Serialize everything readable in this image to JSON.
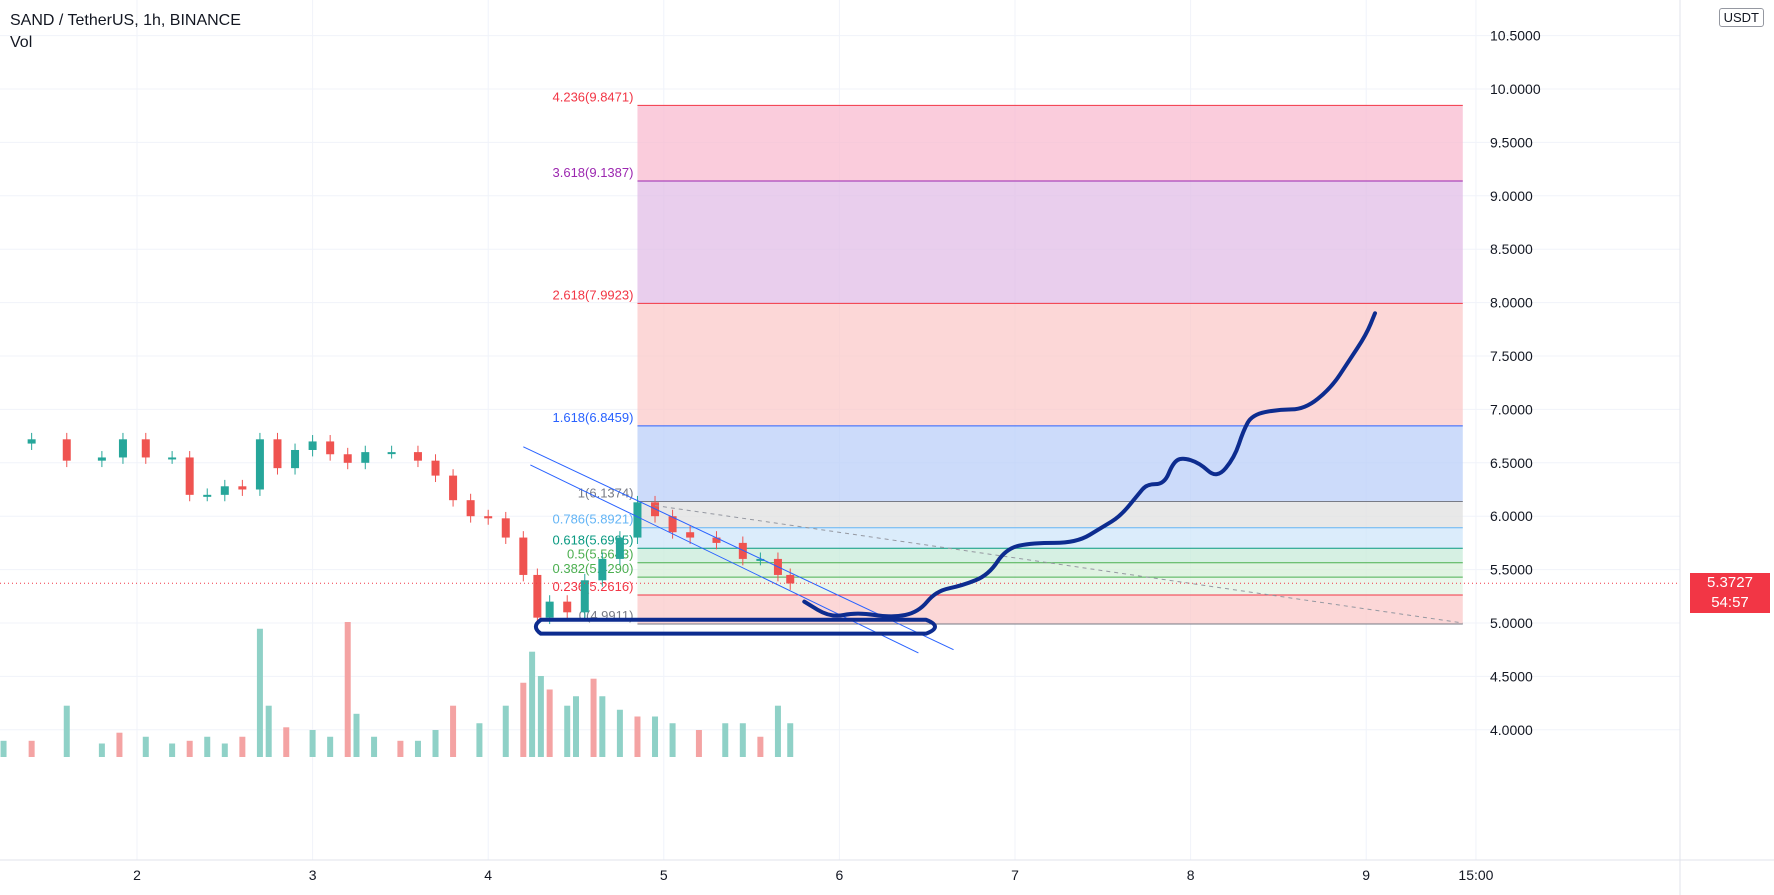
{
  "header": {
    "title": "SAND / TetherUS, 1h, BINANCE",
    "volume_label": "Vol"
  },
  "currency": "USDT",
  "last_price": {
    "value": "5.3727",
    "countdown": "54:57"
  },
  "colors": {
    "up": "#26a69a",
    "down": "#ef5350",
    "volume_up": "#8fd1c7",
    "volume_down": "#f4a3a3",
    "drawing": "#0d2c8f",
    "channel": "#2962ff",
    "price_line": "#f23645"
  },
  "chart_data": {
    "type": "candlestick",
    "symbol": "SAND / TetherUS",
    "interval": "1h",
    "exchange": "BINANCE",
    "y_axis": {
      "min": 3.8,
      "max": 10.6,
      "ticks": [
        "4.0000",
        "4.5000",
        "5.0000",
        "5.5000",
        "6.0000",
        "6.5000",
        "7.0000",
        "7.5000",
        "8.0000",
        "8.5000",
        "9.0000",
        "9.5000",
        "10.0000",
        "10.5000"
      ]
    },
    "x_axis": {
      "ticks": [
        {
          "day": 2,
          "label": "2"
        },
        {
          "day": 3,
          "label": "3"
        },
        {
          "day": 4,
          "label": "4"
        },
        {
          "day": 5,
          "label": "5"
        },
        {
          "day": 6,
          "label": "6"
        },
        {
          "day": 7,
          "label": "7"
        },
        {
          "day": 8,
          "label": "8"
        },
        {
          "day": 9,
          "label": "9"
        },
        {
          "day": 9.625,
          "label": "15:00"
        }
      ],
      "start_day": 1.24,
      "end_day": 9.8
    },
    "price_series": [
      [
        1.24,
        6.68
      ],
      [
        1.4,
        6.72
      ],
      [
        1.6,
        6.52
      ],
      [
        1.8,
        6.55
      ],
      [
        1.92,
        6.72
      ],
      [
        2.05,
        6.55
      ],
      [
        2.2,
        6.55
      ],
      [
        2.3,
        6.2
      ],
      [
        2.4,
        6.2
      ],
      [
        2.5,
        6.28
      ],
      [
        2.6,
        6.25
      ],
      [
        2.7,
        6.72
      ],
      [
        2.8,
        6.45
      ],
      [
        2.9,
        6.62
      ],
      [
        3.0,
        6.7
      ],
      [
        3.1,
        6.58
      ],
      [
        3.2,
        6.5
      ],
      [
        3.3,
        6.6
      ],
      [
        3.45,
        6.6
      ],
      [
        3.6,
        6.52
      ],
      [
        3.7,
        6.38
      ],
      [
        3.8,
        6.15
      ],
      [
        3.9,
        6.0
      ],
      [
        4.0,
        5.98
      ],
      [
        4.1,
        5.8
      ],
      [
        4.2,
        5.45
      ],
      [
        4.28,
        5.05
      ],
      [
        4.35,
        5.2
      ],
      [
        4.45,
        5.1
      ],
      [
        4.55,
        5.4
      ],
      [
        4.65,
        5.6
      ],
      [
        4.75,
        5.8
      ],
      [
        4.85,
        6.13
      ],
      [
        4.95,
        6.0
      ],
      [
        5.05,
        5.85
      ],
      [
        5.15,
        5.8
      ],
      [
        5.3,
        5.75
      ],
      [
        5.45,
        5.6
      ],
      [
        5.55,
        5.6
      ],
      [
        5.65,
        5.45
      ],
      [
        5.72,
        5.37
      ]
    ],
    "volume": [
      [
        1.24,
        0.12
      ],
      [
        1.4,
        0.12
      ],
      [
        1.6,
        0.38
      ],
      [
        1.8,
        0.1
      ],
      [
        1.9,
        0.18
      ],
      [
        2.05,
        0.15
      ],
      [
        2.2,
        0.1
      ],
      [
        2.3,
        0.12
      ],
      [
        2.4,
        0.15
      ],
      [
        2.5,
        0.1
      ],
      [
        2.6,
        0.15
      ],
      [
        2.7,
        0.95
      ],
      [
        2.75,
        0.38
      ],
      [
        2.85,
        0.22
      ],
      [
        3.0,
        0.2
      ],
      [
        3.1,
        0.15
      ],
      [
        3.2,
        1.0
      ],
      [
        3.25,
        0.32
      ],
      [
        3.35,
        0.15
      ],
      [
        3.5,
        0.12
      ],
      [
        3.6,
        0.12
      ],
      [
        3.7,
        0.2
      ],
      [
        3.8,
        0.38
      ],
      [
        3.95,
        0.25
      ],
      [
        4.1,
        0.38
      ],
      [
        4.2,
        0.55
      ],
      [
        4.25,
        0.78
      ],
      [
        4.3,
        0.6
      ],
      [
        4.35,
        0.5
      ],
      [
        4.45,
        0.38
      ],
      [
        4.5,
        0.45
      ],
      [
        4.6,
        0.58
      ],
      [
        4.65,
        0.45
      ],
      [
        4.75,
        0.35
      ],
      [
        4.85,
        0.3
      ],
      [
        4.95,
        0.3
      ],
      [
        5.05,
        0.25
      ],
      [
        5.2,
        0.2
      ],
      [
        5.35,
        0.25
      ],
      [
        5.45,
        0.25
      ],
      [
        5.55,
        0.15
      ],
      [
        5.65,
        0.38
      ],
      [
        5.72,
        0.25
      ]
    ],
    "channel": {
      "upper": [
        [
          4.2,
          6.65
        ],
        [
          6.65,
          4.75
        ]
      ],
      "lower": [
        [
          4.24,
          6.48
        ],
        [
          6.45,
          4.72
        ]
      ]
    },
    "trend_line_dashed": [
      [
        4.95,
        6.1
      ],
      [
        9.55,
        5.0
      ]
    ],
    "last_price_value": 5.3727,
    "fibonacci": {
      "x_start": 4.85,
      "x_end": 9.55,
      "levels": [
        {
          "label": "4.236(9.8471)",
          "price": 9.8471,
          "color": "#f23645",
          "fill": "#f8bbd0"
        },
        {
          "label": "3.618(9.1387)",
          "price": 9.1387,
          "color": "#9c27b0",
          "fill": "#e1bee7"
        },
        {
          "label": "2.618(7.9923)",
          "price": 7.9923,
          "color": "#f23645",
          "fill": "#fbcaca"
        },
        {
          "label": "1.618(6.8459)",
          "price": 6.8459,
          "color": "#2962ff",
          "fill": "#bbcff8"
        },
        {
          "label": "1(6.1374)",
          "price": 6.1374,
          "color": "#787b86",
          "fill": "#e0e0e0"
        },
        {
          "label": "0.786(5.8921)",
          "price": 5.8921,
          "color": "#64b5f6",
          "fill": "#cfe6fa"
        },
        {
          "label": "0.618(5.6995)",
          "price": 5.6995,
          "color": "#089981",
          "fill": "#c8ebd9"
        },
        {
          "label": "0.5(5.5643)",
          "price": 5.5643,
          "color": "#4caf50",
          "fill": "#d6efd8"
        },
        {
          "label": "0.382(5.4290)",
          "price": 5.429,
          "color": "#4caf50",
          "fill": "#e3f3e3"
        },
        {
          "label": "0.236(5.2616)",
          "price": 5.2616,
          "color": "#f23645",
          "fill": "#fbcaca"
        },
        {
          "label": "0(4.9911)",
          "price": 4.9911,
          "color": "#787b86",
          "fill": "none"
        }
      ]
    },
    "drawn_projection": [
      [
        5.8,
        5.2
      ],
      [
        5.95,
        5.05
      ],
      [
        6.1,
        5.1
      ],
      [
        6.3,
        5.05
      ],
      [
        6.45,
        5.1
      ],
      [
        6.55,
        5.3
      ],
      [
        6.7,
        5.35
      ],
      [
        6.85,
        5.45
      ],
      [
        6.95,
        5.7
      ],
      [
        7.1,
        5.75
      ],
      [
        7.35,
        5.75
      ],
      [
        7.5,
        5.9
      ],
      [
        7.6,
        6.0
      ],
      [
        7.7,
        6.2
      ],
      [
        7.75,
        6.3
      ],
      [
        7.85,
        6.3
      ],
      [
        7.9,
        6.5
      ],
      [
        7.95,
        6.55
      ],
      [
        8.05,
        6.5
      ],
      [
        8.15,
        6.35
      ],
      [
        8.25,
        6.55
      ],
      [
        8.3,
        6.8
      ],
      [
        8.35,
        6.95
      ],
      [
        8.5,
        7.0
      ],
      [
        8.65,
        7.0
      ],
      [
        8.8,
        7.2
      ],
      [
        8.9,
        7.45
      ],
      [
        9.0,
        7.7
      ],
      [
        9.05,
        7.9
      ]
    ],
    "drawn_ellipse": {
      "x_from": 4.3,
      "x_to": 6.55,
      "y_top": 5.03,
      "y_bottom": 4.9
    }
  }
}
